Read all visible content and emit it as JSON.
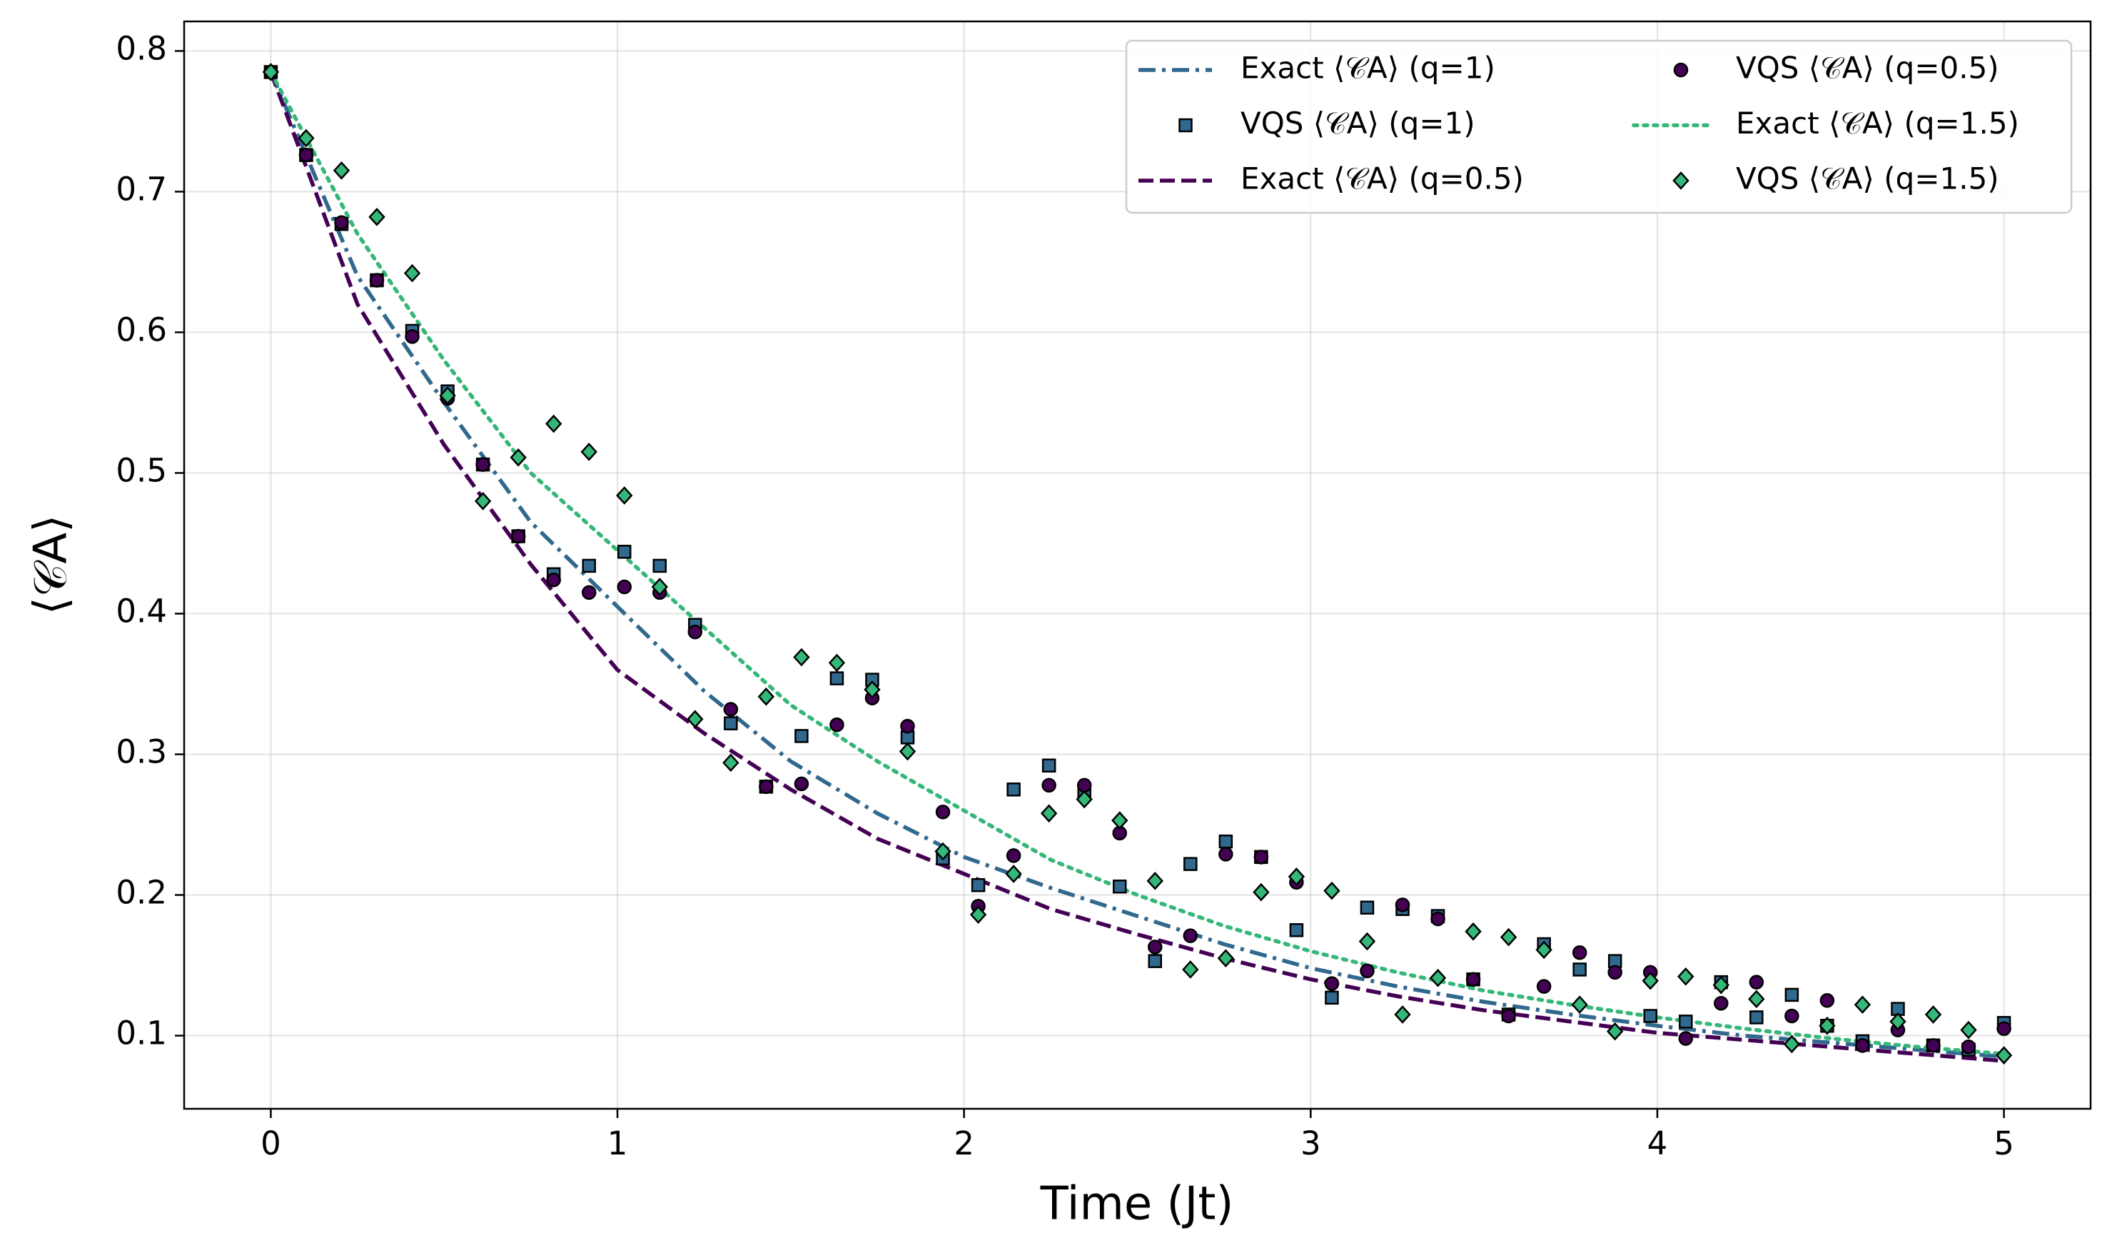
{
  "chart_data": {
    "type": "line",
    "xlabel": "Time (Jt)",
    "ylabel": "⟨𝒞A⟩",
    "xlim": [
      -0.25,
      5.25
    ],
    "ylim": [
      0.048,
      0.821
    ],
    "xticks": [
      0,
      1,
      2,
      3,
      4,
      5
    ],
    "yticks": [
      0.1,
      0.2,
      0.3,
      0.4,
      0.5,
      0.6,
      0.7,
      0.8
    ],
    "grid": true,
    "legend": "upper right",
    "series": [
      {
        "name": "Exact ⟨𝒞A⟩ (q=1)",
        "kind": "line",
        "linestyle": "dashdot",
        "color": "#31688e",
        "x": [
          0,
          0.25,
          0.5,
          0.75,
          1,
          1.25,
          1.5,
          1.75,
          2,
          2.25,
          2.5,
          2.75,
          3,
          3.25,
          3.5,
          3.75,
          4,
          4.25,
          4.5,
          4.75,
          5
        ],
        "values": [
          0.785,
          0.64,
          0.55,
          0.465,
          0.405,
          0.345,
          0.295,
          0.258,
          0.227,
          0.205,
          0.185,
          0.165,
          0.148,
          0.135,
          0.124,
          0.115,
          0.107,
          0.1,
          0.095,
          0.09,
          0.085
        ]
      },
      {
        "name": "VQS ⟨𝒞A⟩ (q=1)",
        "kind": "scatter",
        "marker": "square",
        "color": "#31688e",
        "x": [
          0,
          0.102,
          0.204,
          0.306,
          0.408,
          0.51,
          0.612,
          0.714,
          0.816,
          0.918,
          1.02,
          1.122,
          1.224,
          1.327,
          1.429,
          1.531,
          1.633,
          1.735,
          1.837,
          1.939,
          2.041,
          2.143,
          2.245,
          2.347,
          2.449,
          2.551,
          2.653,
          2.755,
          2.857,
          2.959,
          3.061,
          3.163,
          3.265,
          3.367,
          3.469,
          3.571,
          3.673,
          3.776,
          3.878,
          3.98,
          4.082,
          4.184,
          4.286,
          4.388,
          4.49,
          4.592,
          4.694,
          4.796,
          4.898,
          5.0
        ],
        "values": [
          0.785,
          0.726,
          0.677,
          0.637,
          0.601,
          0.558,
          0.506,
          0.455,
          0.428,
          0.434,
          0.444,
          0.434,
          0.392,
          0.322,
          0.277,
          0.313,
          0.354,
          0.353,
          0.312,
          0.226,
          0.207,
          0.275,
          0.292,
          0.272,
          0.206,
          0.153,
          0.222,
          0.238,
          0.227,
          0.175,
          0.127,
          0.191,
          0.19,
          0.185,
          0.14,
          0.115,
          0.165,
          0.147,
          0.153,
          0.114,
          0.11,
          0.138,
          0.113,
          0.129,
          0.107,
          0.096,
          0.119,
          0.093,
          0.09,
          0.109
        ]
      },
      {
        "name": "Exact ⟨𝒞A⟩ (q=0.5)",
        "kind": "line",
        "linestyle": "dashed",
        "color": "#440154",
        "x": [
          0,
          0.25,
          0.5,
          0.75,
          1,
          1.25,
          1.5,
          1.75,
          2,
          2.25,
          2.5,
          2.75,
          3,
          3.25,
          3.5,
          3.75,
          4,
          4.25,
          4.5,
          4.75,
          5
        ],
        "values": [
          0.785,
          0.62,
          0.52,
          0.435,
          0.36,
          0.315,
          0.275,
          0.24,
          0.215,
          0.19,
          0.172,
          0.155,
          0.14,
          0.128,
          0.118,
          0.11,
          0.102,
          0.097,
          0.092,
          0.087,
          0.082
        ]
      },
      {
        "name": "VQS ⟨𝒞A⟩ (q=0.5)",
        "kind": "scatter",
        "marker": "circle",
        "color": "#440154",
        "x": [
          0,
          0.102,
          0.204,
          0.306,
          0.408,
          0.51,
          0.612,
          0.714,
          0.816,
          0.918,
          1.02,
          1.122,
          1.224,
          1.327,
          1.429,
          1.531,
          1.633,
          1.735,
          1.837,
          1.939,
          2.041,
          2.143,
          2.245,
          2.347,
          2.449,
          2.551,
          2.653,
          2.755,
          2.857,
          2.959,
          3.061,
          3.163,
          3.265,
          3.367,
          3.469,
          3.571,
          3.673,
          3.776,
          3.878,
          3.98,
          4.082,
          4.184,
          4.286,
          4.388,
          4.49,
          4.592,
          4.694,
          4.796,
          4.898,
          5.0
        ],
        "values": [
          0.785,
          0.726,
          0.678,
          0.637,
          0.597,
          0.553,
          0.506,
          0.455,
          0.424,
          0.415,
          0.419,
          0.415,
          0.387,
          0.332,
          0.277,
          0.279,
          0.321,
          0.34,
          0.32,
          0.259,
          0.192,
          0.228,
          0.278,
          0.278,
          0.244,
          0.163,
          0.171,
          0.229,
          0.227,
          0.209,
          0.137,
          0.146,
          0.193,
          0.183,
          0.14,
          0.114,
          0.135,
          0.159,
          0.145,
          0.145,
          0.098,
          0.123,
          0.138,
          0.114,
          0.125,
          0.093,
          0.104,
          0.093,
          0.092,
          0.105
        ]
      },
      {
        "name": "Exact ⟨𝒞A⟩ (q=1.5)",
        "kind": "line",
        "linestyle": "dotted",
        "color": "#35b779",
        "x": [
          0,
          0.25,
          0.5,
          0.75,
          1,
          1.25,
          1.5,
          1.75,
          2,
          2.25,
          2.5,
          2.75,
          3,
          3.25,
          3.5,
          3.75,
          4,
          4.25,
          4.5,
          4.75,
          5
        ],
        "values": [
          0.785,
          0.67,
          0.58,
          0.5,
          0.445,
          0.39,
          0.335,
          0.295,
          0.26,
          0.225,
          0.2,
          0.178,
          0.16,
          0.145,
          0.132,
          0.122,
          0.113,
          0.105,
          0.098,
          0.092,
          0.087
        ]
      },
      {
        "name": "VQS ⟨𝒞A⟩ (q=1.5)",
        "kind": "scatter",
        "marker": "diamond",
        "color": "#35b779",
        "x": [
          0,
          0.102,
          0.204,
          0.306,
          0.408,
          0.51,
          0.612,
          0.714,
          0.816,
          0.918,
          1.02,
          1.122,
          1.224,
          1.327,
          1.429,
          1.531,
          1.633,
          1.735,
          1.837,
          1.939,
          2.041,
          2.143,
          2.245,
          2.347,
          2.449,
          2.551,
          2.653,
          2.755,
          2.857,
          2.959,
          3.061,
          3.163,
          3.265,
          3.367,
          3.469,
          3.571,
          3.673,
          3.776,
          3.878,
          3.98,
          4.082,
          4.184,
          4.286,
          4.388,
          4.49,
          4.592,
          4.694,
          4.796,
          4.898,
          5.0
        ],
        "values": [
          0.785,
          0.738,
          0.715,
          0.682,
          0.642,
          0.555,
          0.48,
          0.511,
          0.535,
          0.515,
          0.484,
          0.419,
          0.325,
          0.294,
          0.341,
          0.369,
          0.365,
          0.346,
          0.302,
          0.231,
          0.186,
          0.215,
          0.258,
          0.268,
          0.253,
          0.21,
          0.147,
          0.155,
          0.202,
          0.213,
          0.203,
          0.167,
          0.115,
          0.141,
          0.174,
          0.17,
          0.161,
          0.122,
          0.103,
          0.139,
          0.142,
          0.136,
          0.126,
          0.094,
          0.107,
          0.122,
          0.11,
          0.115,
          0.104,
          0.086
        ]
      }
    ]
  }
}
